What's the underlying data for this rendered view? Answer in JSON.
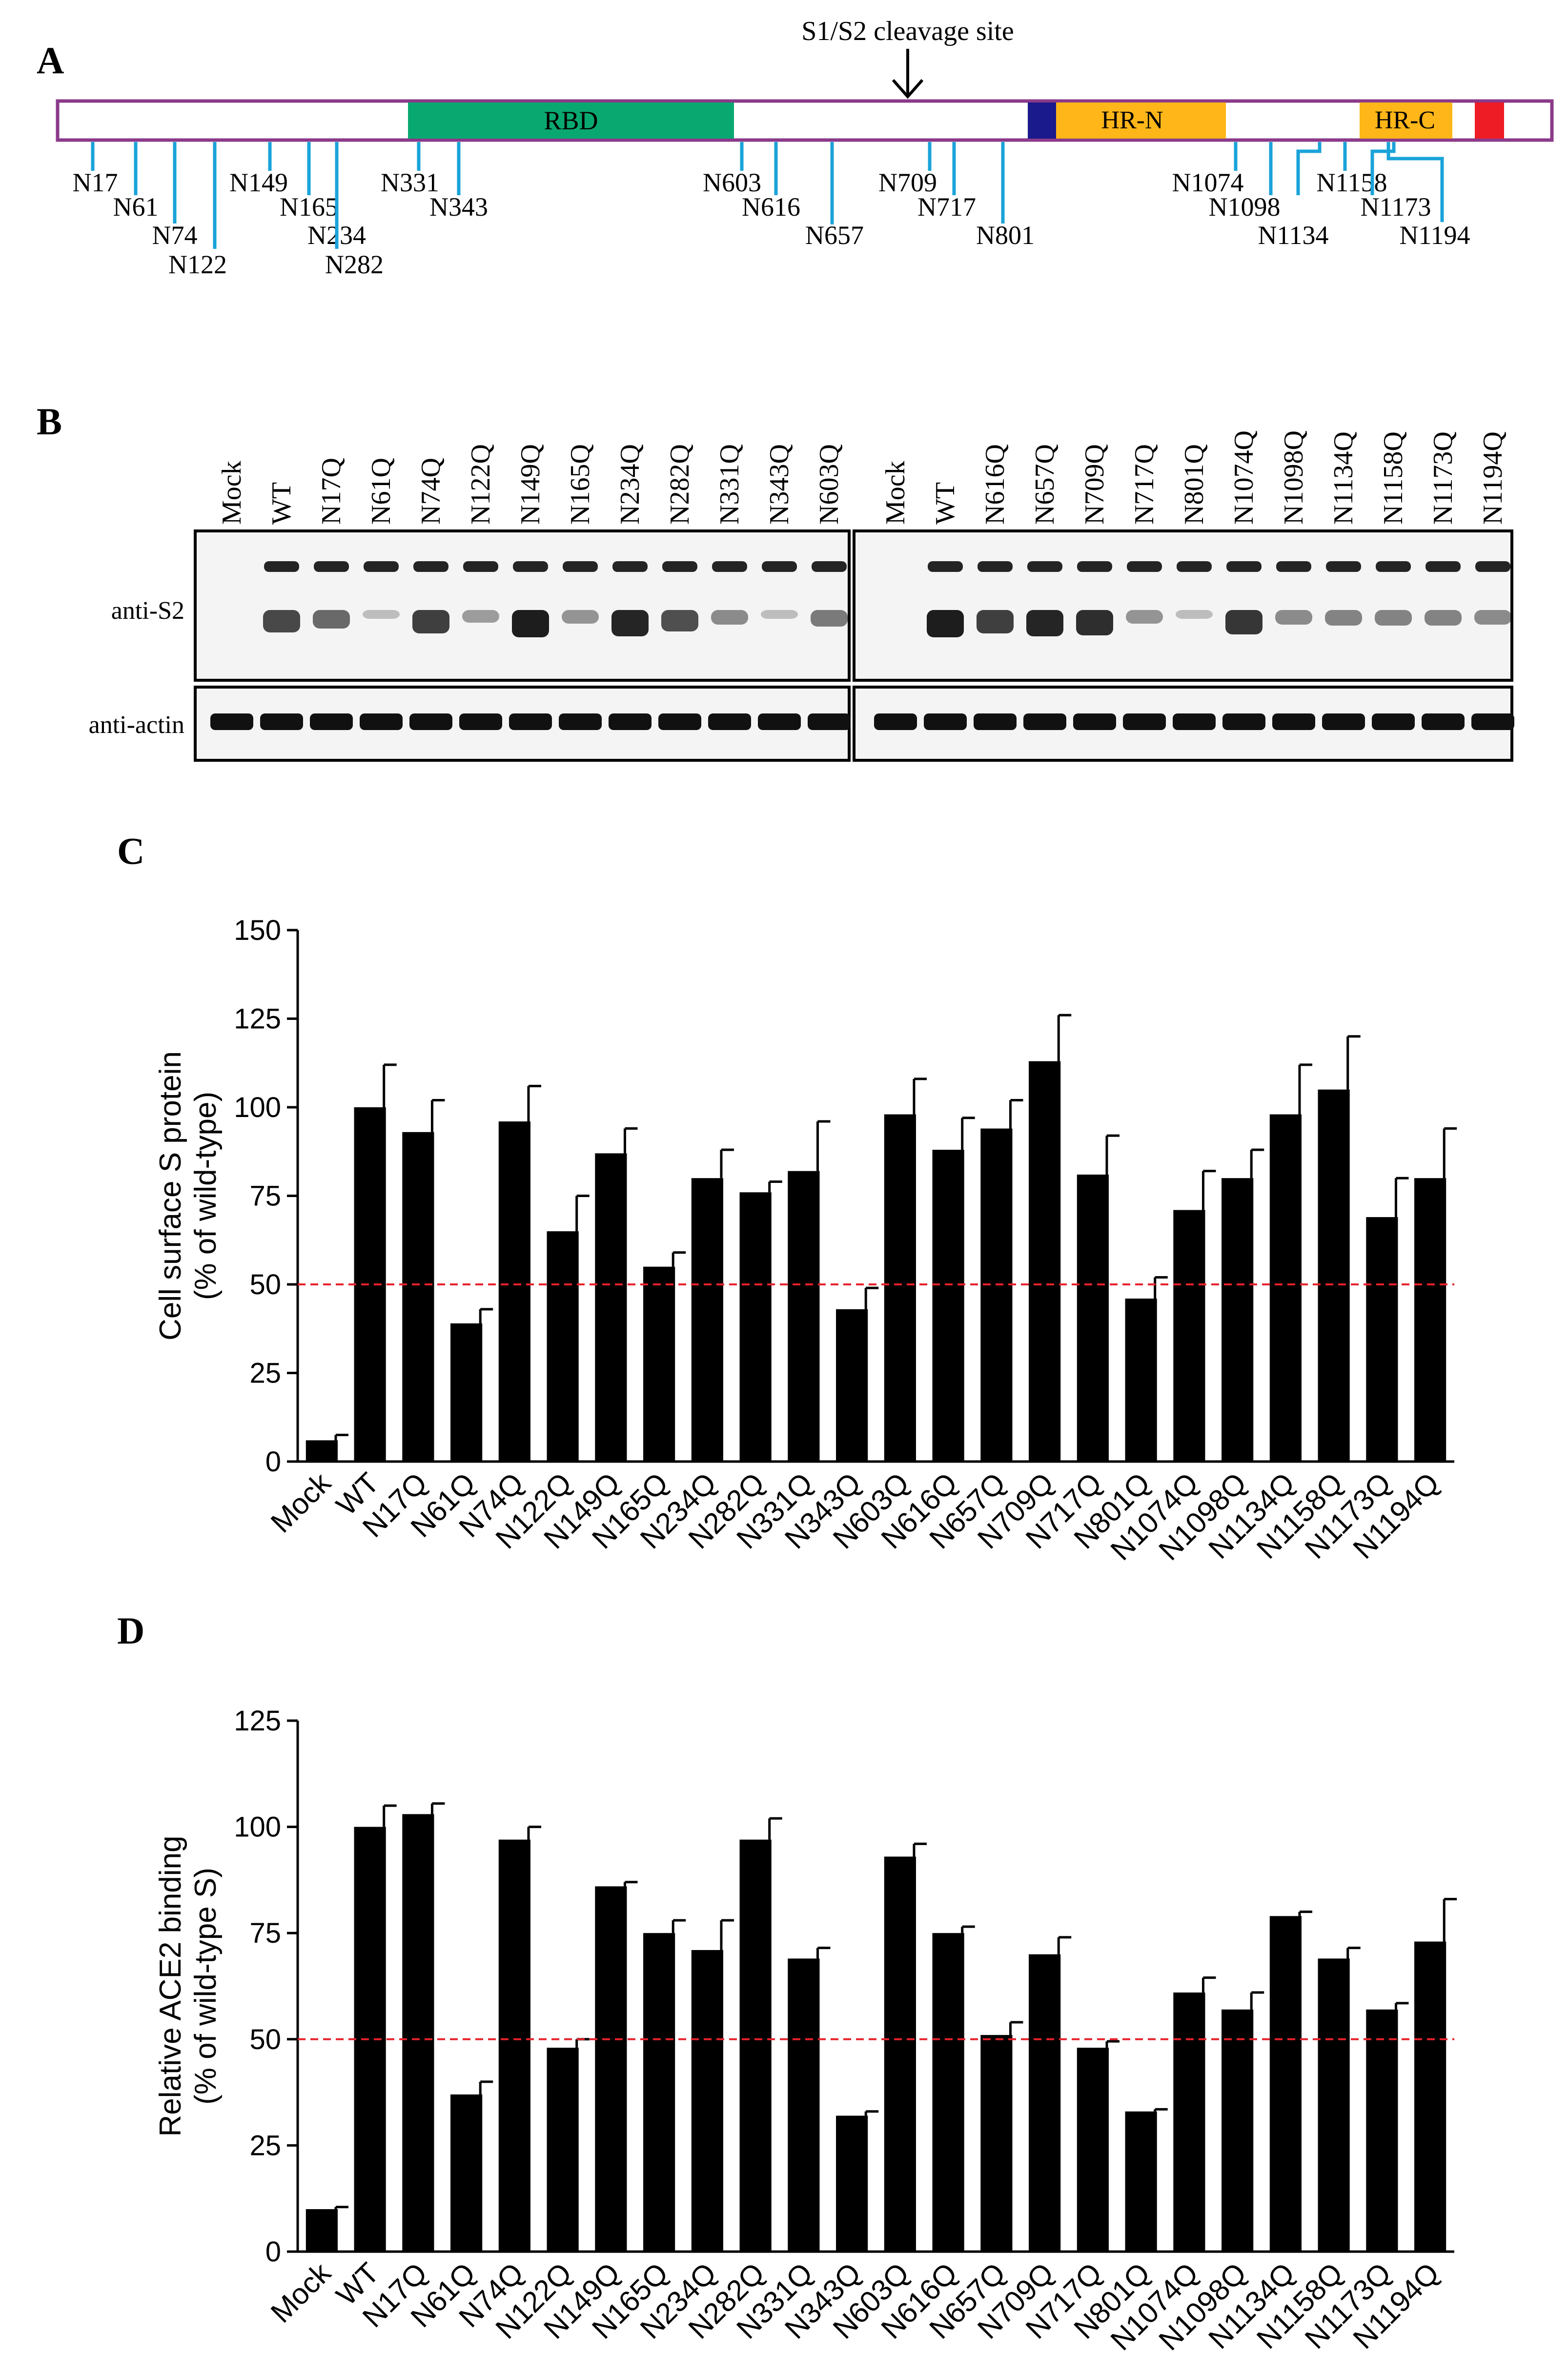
{
  "panels": {
    "a": {
      "letter": "A"
    },
    "b": {
      "letter": "B"
    },
    "c": {
      "letter": "C"
    },
    "d": {
      "letter": "D"
    }
  },
  "schematic": {
    "cleavage_label": "S1/S2 cleavage site",
    "domains": [
      {
        "label": "RBD",
        "color": "#0aa871"
      },
      {
        "label": "",
        "color": "#1a1a8c"
      },
      {
        "label": "HR-N",
        "color": "#ffb619"
      },
      {
        "label": "HR-C",
        "color": "#ffb619"
      },
      {
        "label": "",
        "color": "#ee1c24"
      }
    ],
    "sites": [
      "N17",
      "N61",
      "N74",
      "N122",
      "N149",
      "N165",
      "N234",
      "N282",
      "N331",
      "N343",
      "N603",
      "N616",
      "N657",
      "N709",
      "N717",
      "N801",
      "N1074",
      "N1098",
      "N1134",
      "N1158",
      "N1173",
      "N1194"
    ],
    "border_color": "#8b3a8b",
    "site_color": "#1aa3d9"
  },
  "blot": {
    "left_lanes": [
      "Mock",
      "WT",
      "N17Q",
      "N61Q",
      "N74Q",
      "N122Q",
      "N149Q",
      "N165Q",
      "N234Q",
      "N282Q",
      "N331Q",
      "N343Q",
      "N603Q"
    ],
    "right_lanes": [
      "Mock",
      "WT",
      "N616Q",
      "N657Q",
      "N709Q",
      "N717Q",
      "N801Q",
      "N1074Q",
      "N1098Q",
      "N1134Q",
      "N1158Q",
      "N1173Q",
      "N1194Q"
    ],
    "row_labels": {
      "s2": "anti-S2",
      "actin": "anti-actin"
    }
  },
  "chart_data": [
    {
      "type": "bar",
      "panel": "C",
      "categories": [
        "Mock",
        "WT",
        "N17Q",
        "N61Q",
        "N74Q",
        "N122Q",
        "N149Q",
        "N165Q",
        "N234Q",
        "N282Q",
        "N331Q",
        "N343Q",
        "N603Q",
        "N616Q",
        "N657Q",
        "N709Q",
        "N717Q",
        "N801Q",
        "N1074Q",
        "N1098Q",
        "N1134Q",
        "N1158Q",
        "N1173Q",
        "N1194Q"
      ],
      "values": [
        6,
        100,
        93,
        39,
        96,
        65,
        87,
        55,
        80,
        76,
        82,
        43,
        98,
        88,
        94,
        113,
        81,
        46,
        71,
        80,
        98,
        105,
        69,
        80
      ],
      "errors": [
        1.5,
        12,
        9,
        4,
        10,
        10,
        7,
        4,
        8,
        3,
        14,
        6,
        10,
        9,
        8,
        13,
        11,
        6,
        11,
        8,
        14,
        15,
        11,
        14
      ],
      "ylabel": "Cell surface S protein",
      "ylabel2": "(% of wild-type)",
      "ylim": [
        0,
        150
      ],
      "yticks": [
        "0",
        "25",
        "50",
        "75",
        "100",
        "125",
        "150"
      ],
      "reference_line": 50,
      "bar_color": "#000000",
      "ref_color": "#e8212b"
    },
    {
      "type": "bar",
      "panel": "D",
      "categories": [
        "Mock",
        "WT",
        "N17Q",
        "N61Q",
        "N74Q",
        "N122Q",
        "N149Q",
        "N165Q",
        "N234Q",
        "N282Q",
        "N331Q",
        "N343Q",
        "N603Q",
        "N616Q",
        "N657Q",
        "N709Q",
        "N717Q",
        "N801Q",
        "N1074Q",
        "N1098Q",
        "N1134Q",
        "N1158Q",
        "N1173Q",
        "N1194Q"
      ],
      "values": [
        10,
        100,
        103,
        37,
        97,
        48,
        86,
        75,
        71,
        97,
        69,
        32,
        93,
        75,
        51,
        70,
        48,
        33,
        61,
        57,
        79,
        69,
        57,
        73
      ],
      "errors": [
        0.5,
        5,
        2.5,
        3,
        3,
        2,
        1,
        3,
        7,
        5,
        2.5,
        1,
        3,
        1.5,
        3,
        4,
        1.5,
        0.5,
        3.5,
        4,
        1,
        2.5,
        1.5,
        10
      ],
      "ylabel": "Relative ACE2 binding",
      "ylabel2": "(% of wild-type S)",
      "ylim": [
        0,
        125
      ],
      "yticks": [
        "0",
        "25",
        "50",
        "75",
        "100",
        "125"
      ],
      "reference_line": 50,
      "bar_color": "#000000",
      "ref_color": "#e8212b"
    }
  ]
}
